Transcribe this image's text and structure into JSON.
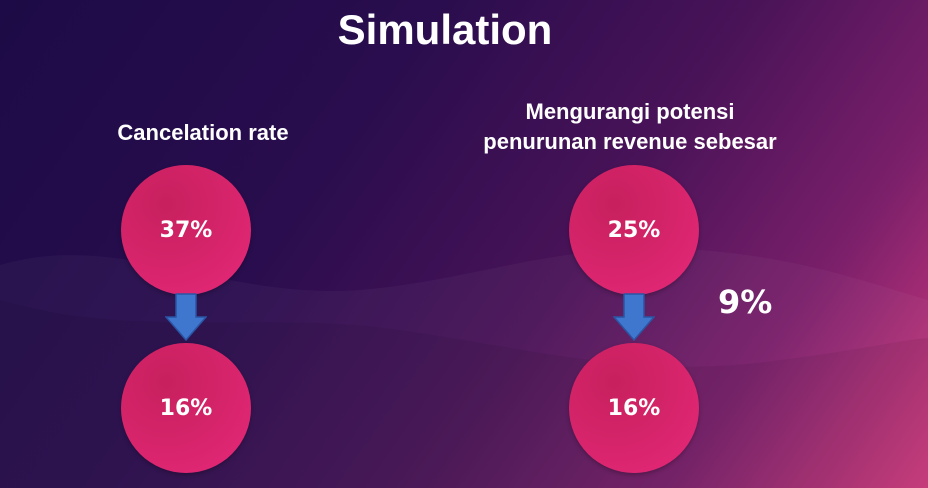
{
  "slide": {
    "title": "Simulation",
    "left": {
      "label": "Cancelation rate",
      "before": "37%",
      "after": "16%"
    },
    "right": {
      "label_line1": "Mengurangi potensi",
      "label_line2": "penurunan revenue sebesar",
      "before": "25%",
      "after": "16%",
      "result": "9%"
    }
  },
  "colors": {
    "circle": "#e0266f",
    "arrow": "#3f77cf",
    "background_dark": "#1c0b46",
    "background_accent": "#d23a7f"
  },
  "icons": [
    "down-arrow-icon",
    "down-arrow-icon"
  ]
}
